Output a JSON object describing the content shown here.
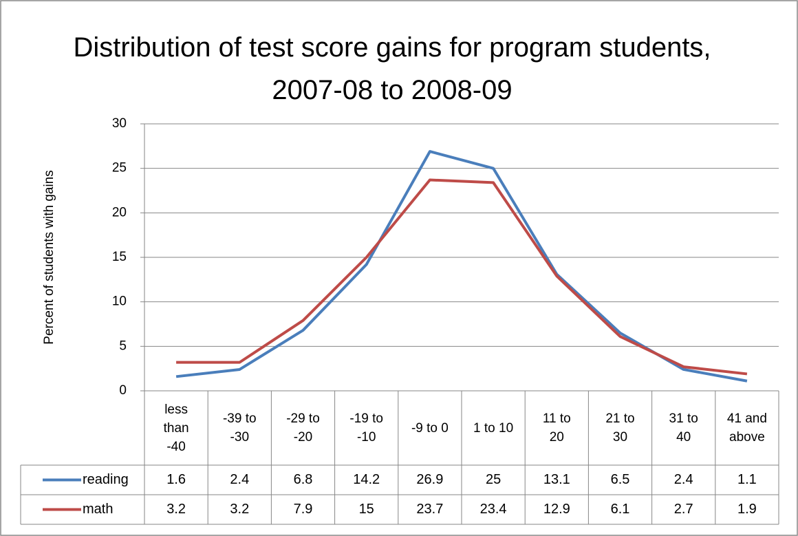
{
  "chart_data": {
    "type": "line",
    "title": "Distribution of test score gains for program students, 2007-08 to 2008-09",
    "y_label": "Percent of students with gains",
    "categories": [
      "less than -40",
      "-39 to -30",
      "-29 to -20",
      "-19 to -10",
      "-9 to 0",
      "1 to 10",
      "11 to 20",
      "21 to 30",
      "31 to 40",
      "41 and above"
    ],
    "series": [
      {
        "name": "reading",
        "color": "#4a7ebb",
        "values": [
          1.6,
          2.4,
          6.8,
          14.2,
          26.9,
          25,
          13.1,
          6.5,
          2.4,
          1.1
        ]
      },
      {
        "name": "math",
        "color": "#be4b48",
        "values": [
          3.2,
          3.2,
          7.9,
          15,
          23.7,
          23.4,
          12.9,
          6.1,
          2.7,
          1.9
        ]
      }
    ],
    "ylim": [
      0,
      30
    ],
    "yticks": [
      0,
      5,
      10,
      15,
      20,
      25,
      30
    ],
    "grid": true,
    "data_table": true
  }
}
